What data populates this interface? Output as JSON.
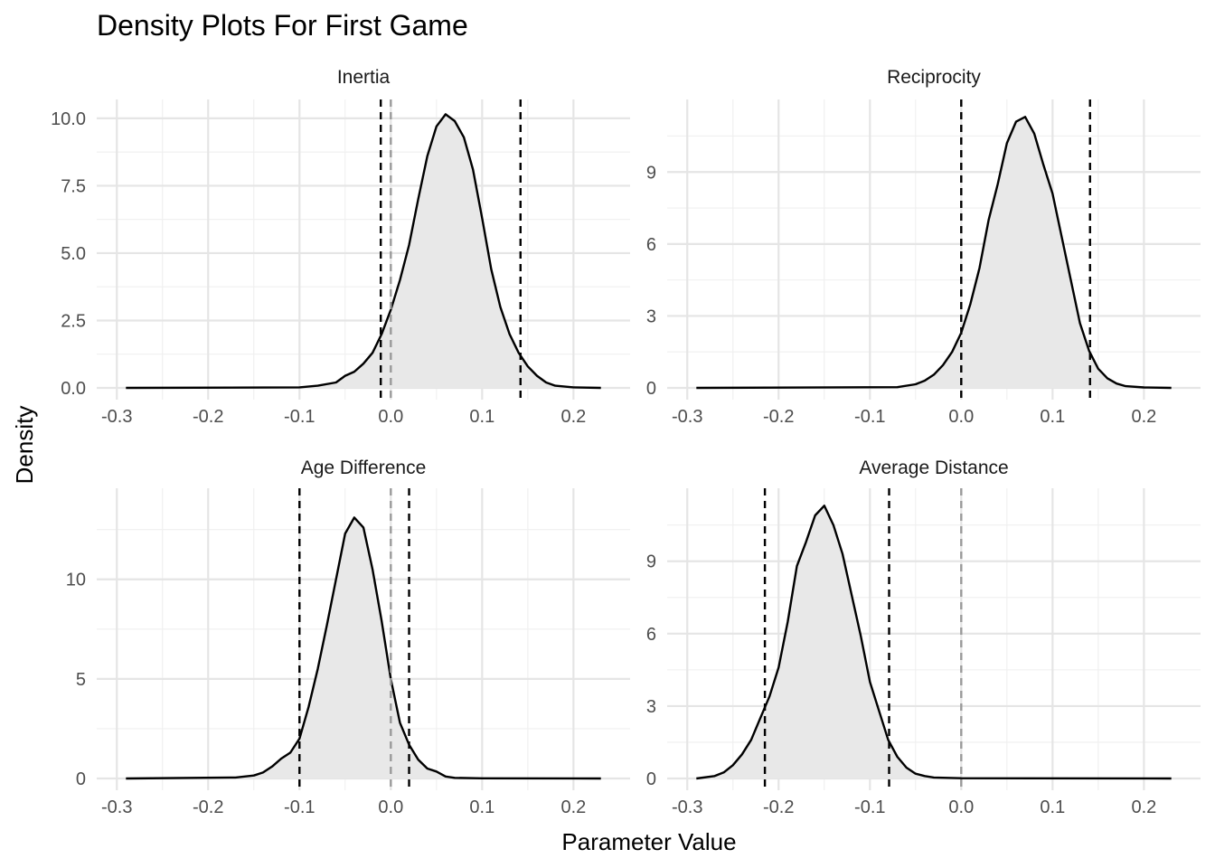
{
  "chart_data": {
    "type": "area",
    "title": "Density Plots For First Game",
    "xlabel": "Parameter Value",
    "ylabel": "Density",
    "xlim": [
      -0.3,
      0.23
    ],
    "x_ticks": [
      "-0.3",
      "-0.2",
      "-0.1",
      "0.0",
      "0.1",
      "0.2"
    ],
    "x_tick_values": [
      -0.3,
      -0.2,
      -0.1,
      0.0,
      0.1,
      0.2
    ],
    "grid": true,
    "legend": "none",
    "colors": {
      "fill": "#e8e8e8",
      "line": "#000000",
      "ci": "#000000",
      "zero": "#9a9a9a"
    },
    "zero_line": 0,
    "panels": [
      {
        "label": "Inertia",
        "ylim": [
          0,
          10.5
        ],
        "y_ticks": [
          0,
          2.5,
          5,
          7.5,
          10
        ],
        "y_tick_labels": [
          "0.0",
          "2.5",
          "5.0",
          "7.5",
          "10.0"
        ],
        "ci": [
          -0.011,
          0.142
        ],
        "curve_x": [
          -0.29,
          -0.1,
          -0.08,
          -0.06,
          -0.05,
          -0.04,
          -0.03,
          -0.02,
          -0.01,
          0.0,
          0.01,
          0.02,
          0.03,
          0.04,
          0.05,
          0.06,
          0.07,
          0.08,
          0.09,
          0.1,
          0.11,
          0.12,
          0.13,
          0.14,
          0.15,
          0.16,
          0.17,
          0.18,
          0.2,
          0.23
        ],
        "curve_y": [
          0,
          0.02,
          0.08,
          0.2,
          0.45,
          0.6,
          0.9,
          1.3,
          2.0,
          2.9,
          4.0,
          5.3,
          7.0,
          8.6,
          9.7,
          10.15,
          9.9,
          9.3,
          8.1,
          6.3,
          4.4,
          3.0,
          2.0,
          1.3,
          0.8,
          0.45,
          0.2,
          0.08,
          0.02,
          0
        ]
      },
      {
        "label": "Reciprocity",
        "ylim": [
          0,
          11.8
        ],
        "y_ticks": [
          0,
          3,
          6,
          9
        ],
        "y_tick_labels": [
          "0",
          "3",
          "6",
          "9"
        ],
        "ci": [
          0.0,
          0.141
        ],
        "curve_x": [
          -0.29,
          -0.07,
          -0.05,
          -0.04,
          -0.03,
          -0.02,
          -0.01,
          0.0,
          0.01,
          0.02,
          0.03,
          0.04,
          0.05,
          0.06,
          0.07,
          0.08,
          0.09,
          0.1,
          0.11,
          0.12,
          0.13,
          0.14,
          0.15,
          0.16,
          0.17,
          0.18,
          0.2,
          0.23
        ],
        "curve_y": [
          0,
          0.03,
          0.15,
          0.3,
          0.55,
          0.95,
          1.5,
          2.3,
          3.5,
          5.0,
          7.0,
          8.5,
          10.2,
          11.1,
          11.3,
          10.6,
          9.3,
          8.1,
          6.3,
          4.5,
          2.7,
          1.55,
          0.8,
          0.4,
          0.18,
          0.07,
          0.02,
          0
        ]
      },
      {
        "label": "Age Difference",
        "ylim": [
          0,
          14.3
        ],
        "y_ticks": [
          0,
          5,
          10
        ],
        "y_tick_labels": [
          "0",
          "5",
          "10"
        ],
        "ci": [
          -0.1,
          0.02
        ],
        "curve_x": [
          -0.29,
          -0.17,
          -0.15,
          -0.14,
          -0.13,
          -0.12,
          -0.11,
          -0.1,
          -0.09,
          -0.08,
          -0.07,
          -0.06,
          -0.05,
          -0.04,
          -0.03,
          -0.02,
          -0.01,
          0.0,
          0.01,
          0.02,
          0.03,
          0.04,
          0.05,
          0.06,
          0.07,
          0.1,
          0.23
        ],
        "curve_y": [
          0,
          0.05,
          0.15,
          0.3,
          0.6,
          1.0,
          1.3,
          2.0,
          3.6,
          5.5,
          7.7,
          10.0,
          12.3,
          13.1,
          12.6,
          10.5,
          7.9,
          5.0,
          2.8,
          1.7,
          0.95,
          0.5,
          0.35,
          0.1,
          0.03,
          0.01,
          0
        ]
      },
      {
        "label": "Average Distance",
        "ylim": [
          0,
          11.8
        ],
        "y_ticks": [
          0,
          3,
          6,
          9
        ],
        "y_tick_labels": [
          "0",
          "3",
          "6",
          "9"
        ],
        "ci": [
          -0.215,
          -0.079
        ],
        "curve_x": [
          -0.29,
          -0.27,
          -0.26,
          -0.25,
          -0.24,
          -0.23,
          -0.22,
          -0.21,
          -0.2,
          -0.19,
          -0.18,
          -0.17,
          -0.16,
          -0.15,
          -0.14,
          -0.13,
          -0.12,
          -0.11,
          -0.1,
          -0.09,
          -0.08,
          -0.07,
          -0.06,
          -0.05,
          -0.04,
          -0.03,
          0.0,
          0.23
        ],
        "curve_y": [
          0,
          0.1,
          0.25,
          0.55,
          1.0,
          1.6,
          2.5,
          3.4,
          4.6,
          6.5,
          8.8,
          9.8,
          10.9,
          11.3,
          10.5,
          9.3,
          7.6,
          5.9,
          4.0,
          2.8,
          1.6,
          0.9,
          0.45,
          0.2,
          0.1,
          0.04,
          0.01,
          0
        ]
      }
    ]
  }
}
